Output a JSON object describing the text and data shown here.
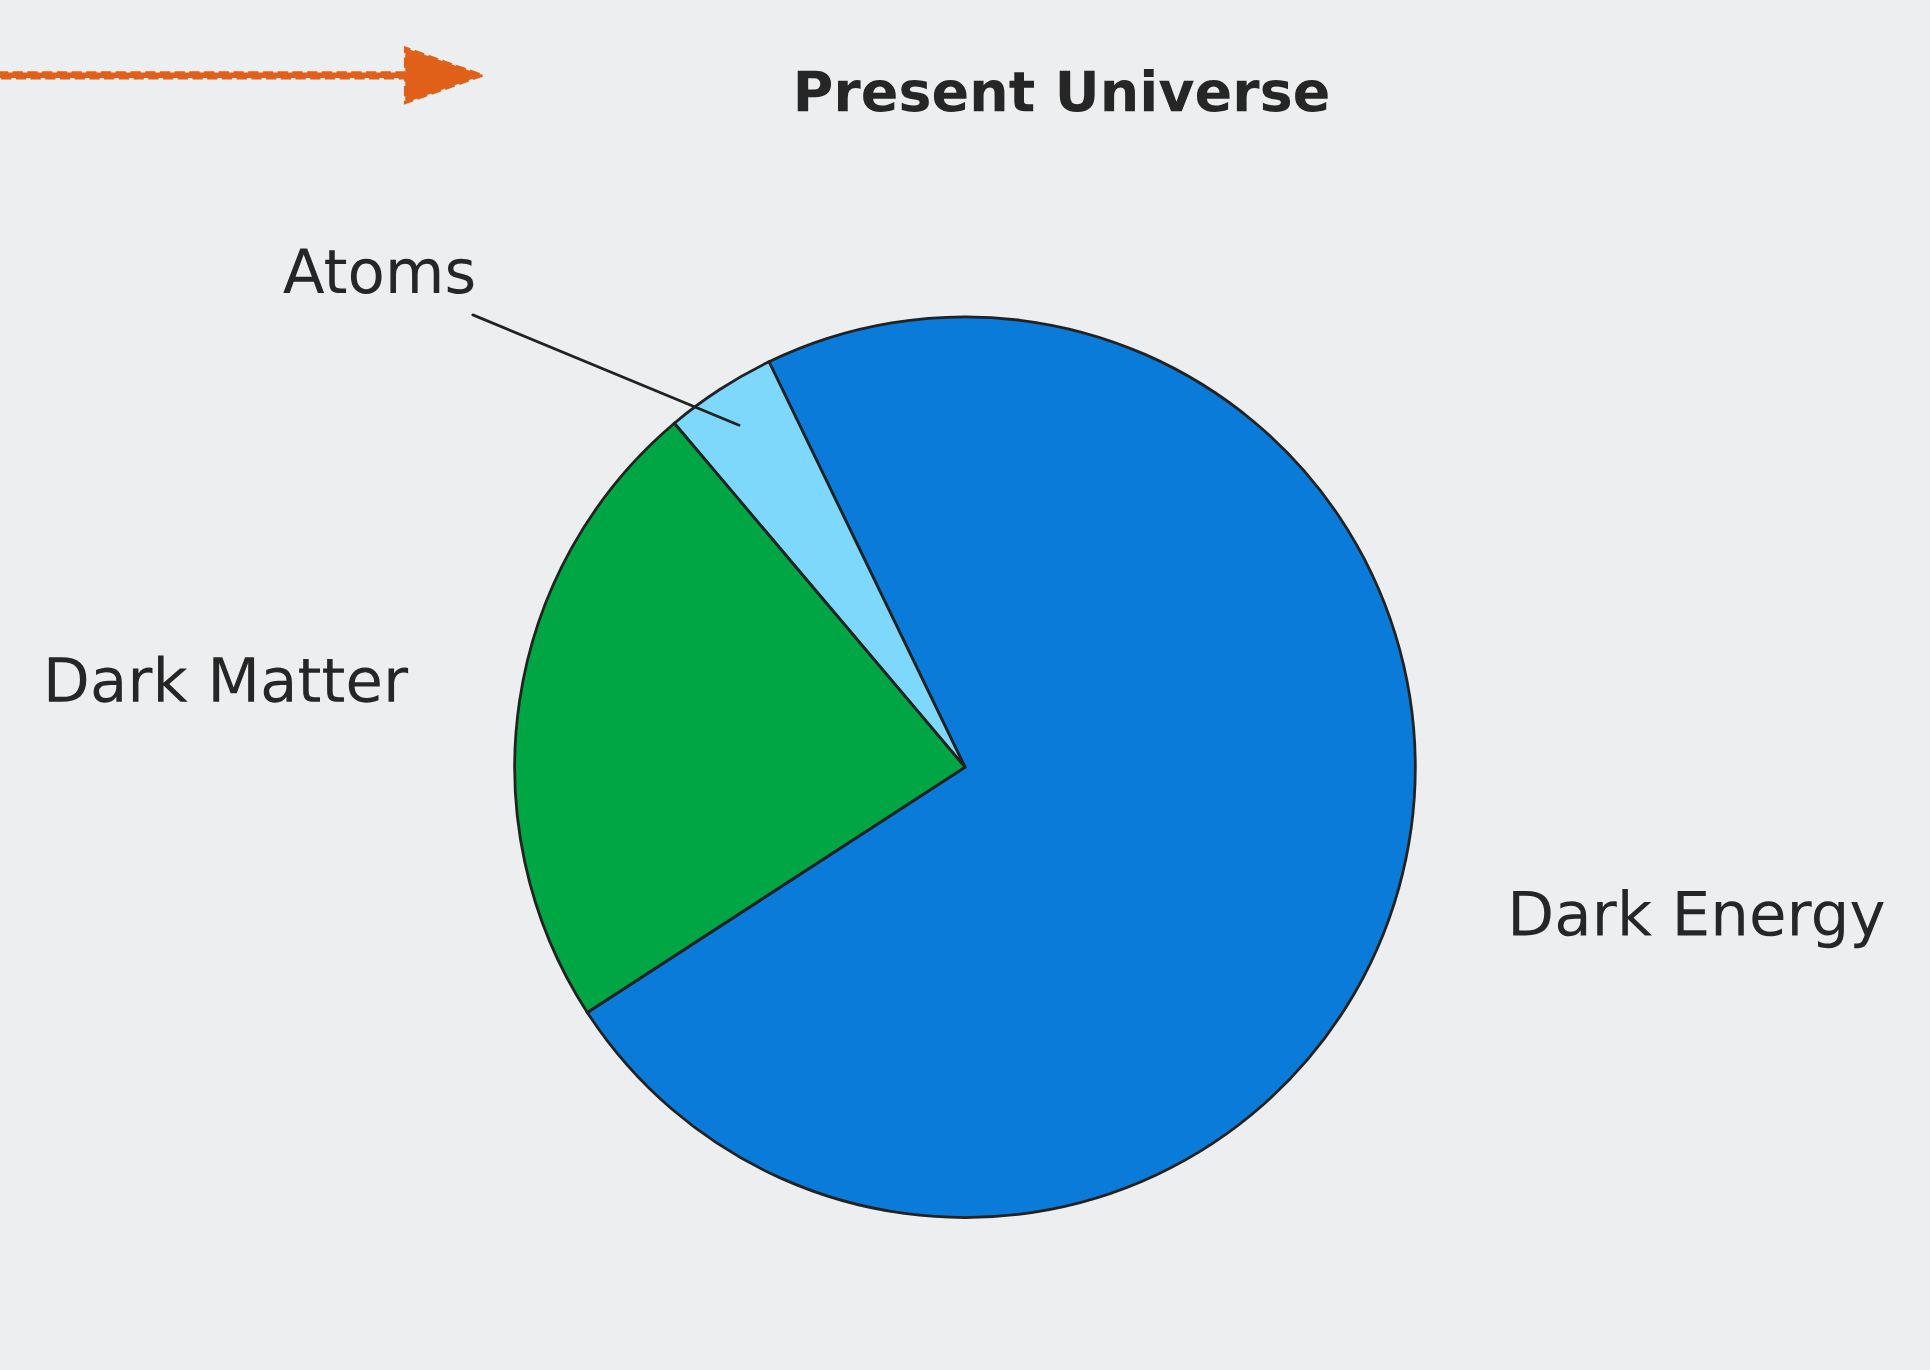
{
  "chart_data": {
    "type": "pie",
    "title": "Present Universe",
    "categories": [
      "Dark Energy",
      "Atoms",
      "Dark Matter"
    ],
    "values": [
      73,
      4,
      23
    ],
    "colors": [
      "#0a7bd8",
      "#7dd8fb",
      "#00a544"
    ]
  }
}
